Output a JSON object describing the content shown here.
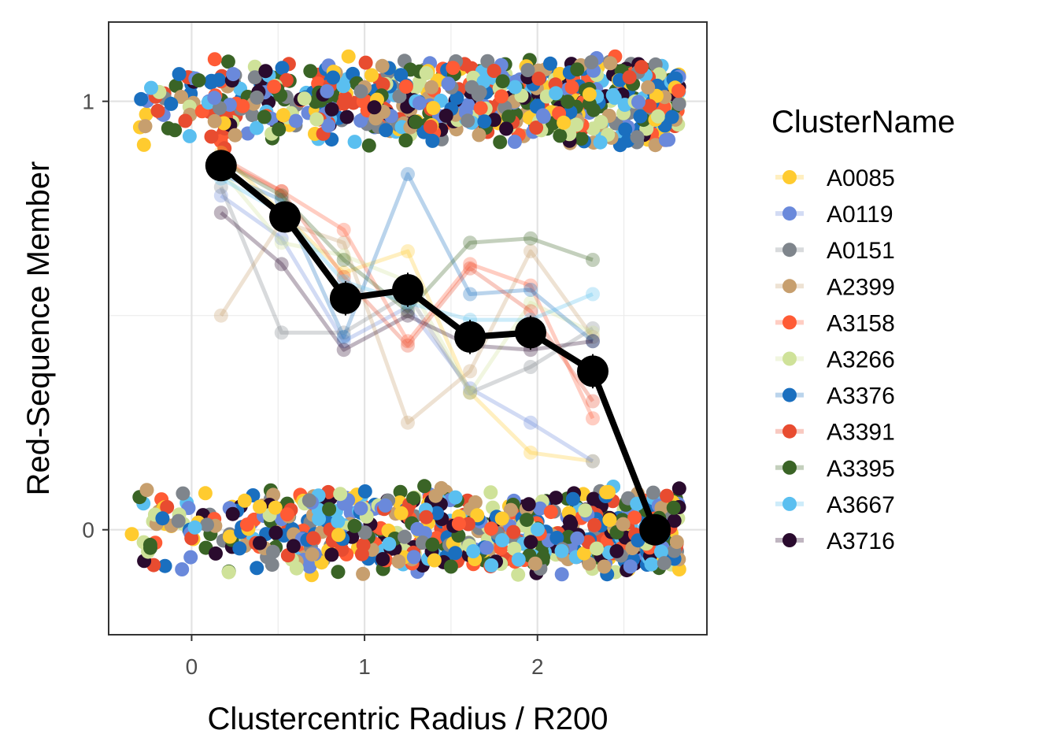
{
  "chart_data": {
    "type": "scatter",
    "title": "",
    "xlabel": "Clustercentric Radius / R200",
    "ylabel": "Red-Sequence Member",
    "xlim": [
      -0.48,
      2.98
    ],
    "ylim": [
      -0.245,
      1.185
    ],
    "x_ticks": [
      0,
      1,
      2
    ],
    "y_ticks": [
      0,
      1
    ],
    "x_tick_labels": [
      "0",
      "1",
      "2"
    ],
    "y_tick_labels": [
      "0",
      "1"
    ],
    "grid": true,
    "legend_title": "ClusterName",
    "legend_position": "right",
    "series": [
      {
        "name": "A0085",
        "color": "#FFCB2F",
        "x": [
          0.17,
          0.52,
          0.88,
          1.25,
          1.61,
          1.96,
          2.32
        ],
        "y": [
          0.88,
          0.74,
          0.6,
          0.65,
          0.32,
          0.18,
          0.16
        ]
      },
      {
        "name": "A0119",
        "color": "#6A89DB",
        "x": [
          0.17,
          0.52,
          0.88,
          1.25,
          1.61,
          1.96,
          2.32
        ],
        "y": [
          0.78,
          0.68,
          0.44,
          0.52,
          0.33,
          0.25,
          0.16
        ]
      },
      {
        "name": "A0151",
        "color": "#7F858C",
        "x": [
          0.17,
          0.52,
          0.88,
          1.25,
          1.61,
          1.96,
          2.32
        ],
        "y": [
          0.8,
          0.46,
          0.46,
          0.55,
          0.32,
          0.38,
          0.47
        ]
      },
      {
        "name": "A2399",
        "color": "#C79F6E",
        "x": [
          0.17,
          0.52,
          0.88,
          1.25,
          1.61,
          1.96,
          2.32
        ],
        "y": [
          0.5,
          0.72,
          0.67,
          0.25,
          0.37,
          0.65,
          0.45
        ]
      },
      {
        "name": "A3158",
        "color": "#FF5B35",
        "x": [
          0.17,
          0.52,
          0.88,
          1.25,
          1.61,
          1.96,
          2.32
        ],
        "y": [
          0.86,
          0.79,
          0.7,
          0.44,
          0.62,
          0.57,
          0.26
        ]
      },
      {
        "name": "A3266",
        "color": "#CFE299",
        "x": [
          0.17,
          0.52,
          0.88,
          1.25,
          1.61,
          1.96,
          2.32
        ],
        "y": [
          0.84,
          0.67,
          0.64,
          0.58,
          0.32,
          0.53,
          0.46
        ]
      },
      {
        "name": "A3376",
        "color": "#1A6FBF",
        "x": [
          0.17,
          0.52,
          0.88,
          1.25,
          1.61,
          1.96,
          2.32
        ],
        "y": [
          0.83,
          0.77,
          0.45,
          0.83,
          0.55,
          0.56,
          0.44
        ]
      },
      {
        "name": "A3391",
        "color": "#E84C30",
        "x": [
          0.17,
          0.52,
          0.88,
          1.25,
          1.61,
          1.96,
          2.32
        ],
        "y": [
          0.87,
          0.79,
          0.59,
          0.43,
          0.61,
          0.51,
          0.3
        ]
      },
      {
        "name": "A3395",
        "color": "#3A6426",
        "x": [
          0.17,
          0.52,
          0.88,
          1.25,
          1.61,
          1.96,
          2.32
        ],
        "y": [
          0.86,
          0.78,
          0.63,
          0.51,
          0.67,
          0.68,
          0.63
        ]
      },
      {
        "name": "A3667",
        "color": "#5ABFF0",
        "x": [
          0.17,
          0.52,
          0.88,
          1.25,
          1.61,
          1.96,
          2.32
        ],
        "y": [
          0.82,
          0.74,
          0.58,
          0.53,
          0.49,
          0.49,
          0.55
        ]
      },
      {
        "name": "A3716",
        "color": "#2A0B2E",
        "x": [
          0.17,
          0.52,
          0.88,
          1.25,
          1.61,
          1.96,
          2.32
        ],
        "y": [
          0.74,
          0.62,
          0.42,
          0.5,
          0.43,
          0.42,
          0.44
        ]
      }
    ],
    "mean": {
      "color": "#000000",
      "x": [
        0.17,
        0.54,
        0.89,
        1.25,
        1.61,
        1.96,
        2.32,
        2.68
      ],
      "y": [
        0.85,
        0.73,
        0.54,
        0.56,
        0.45,
        0.46,
        0.37,
        0.0
      ],
      "err": [
        0.03,
        0.03,
        0.04,
        0.04,
        0.04,
        0.04,
        0.04,
        0.0
      ]
    },
    "member_points": {
      "x_range": [
        -0.35,
        2.82
      ],
      "y_levels": [
        0,
        1
      ],
      "y_jitter": 0.11,
      "count_per_level": 700
    }
  }
}
